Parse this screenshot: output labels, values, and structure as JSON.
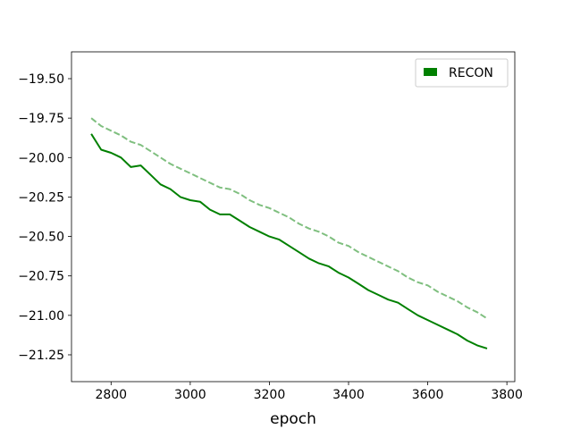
{
  "chart_data": {
    "type": "line",
    "title": "",
    "xlabel": "epoch",
    "ylabel": "",
    "xlim": [
      2700,
      3820
    ],
    "ylim": [
      -21.42,
      -19.33
    ],
    "x_ticks": [
      2800,
      3000,
      3200,
      3400,
      3600,
      3800
    ],
    "y_ticks": [
      -19.5,
      -19.75,
      -20.0,
      -20.25,
      -20.5,
      -20.75,
      -21.0,
      -21.25
    ],
    "x_tick_labels": [
      "2800",
      "3000",
      "3200",
      "3400",
      "3600",
      "3800"
    ],
    "y_tick_labels": [
      "−19.50",
      "−19.75",
      "−20.00",
      "−20.25",
      "−20.50",
      "−20.75",
      "−21.00",
      "−21.25"
    ],
    "grid": false,
    "legend": {
      "position": "top-right",
      "entries": [
        "RECON"
      ]
    },
    "series": [
      {
        "name": "RECON",
        "style": "solid",
        "color": "#008000",
        "x": [
          2750,
          2775,
          2800,
          2825,
          2850,
          2875,
          2900,
          2925,
          2950,
          2975,
          3000,
          3025,
          3050,
          3075,
          3100,
          3125,
          3150,
          3175,
          3200,
          3225,
          3250,
          3275,
          3300,
          3325,
          3350,
          3375,
          3400,
          3425,
          3450,
          3475,
          3500,
          3525,
          3550,
          3575,
          3600,
          3625,
          3650,
          3675,
          3700,
          3725,
          3750
        ],
        "y": [
          -19.85,
          -19.95,
          -19.97,
          -20.0,
          -20.06,
          -20.05,
          -20.11,
          -20.17,
          -20.2,
          -20.25,
          -20.27,
          -20.28,
          -20.33,
          -20.36,
          -20.36,
          -20.4,
          -20.44,
          -20.47,
          -20.5,
          -20.52,
          -20.56,
          -20.6,
          -20.64,
          -20.67,
          -20.69,
          -20.73,
          -20.76,
          -20.8,
          -20.84,
          -20.87,
          -20.9,
          -20.92,
          -20.96,
          -21.0,
          -21.03,
          -21.06,
          -21.09,
          -21.12,
          -21.16,
          -21.19,
          -21.21
        ]
      },
      {
        "name": "",
        "style": "dashed",
        "color": "#7fbf7f",
        "x": [
          2750,
          2775,
          2800,
          2825,
          2850,
          2875,
          2900,
          2925,
          2950,
          2975,
          3000,
          3025,
          3050,
          3075,
          3100,
          3125,
          3150,
          3175,
          3200,
          3225,
          3250,
          3275,
          3300,
          3325,
          3350,
          3375,
          3400,
          3425,
          3450,
          3475,
          3500,
          3525,
          3550,
          3575,
          3600,
          3625,
          3650,
          3675,
          3700,
          3725,
          3750
        ],
        "y": [
          -19.75,
          -19.8,
          -19.83,
          -19.86,
          -19.9,
          -19.92,
          -19.96,
          -20.0,
          -20.04,
          -20.07,
          -20.1,
          -20.13,
          -20.16,
          -20.19,
          -20.2,
          -20.23,
          -20.27,
          -20.3,
          -20.32,
          -20.35,
          -20.38,
          -20.42,
          -20.45,
          -20.47,
          -20.5,
          -20.54,
          -20.56,
          -20.6,
          -20.63,
          -20.66,
          -20.69,
          -20.72,
          -20.76,
          -20.79,
          -20.81,
          -20.85,
          -20.88,
          -20.91,
          -20.95,
          -20.98,
          -21.02
        ]
      }
    ]
  }
}
